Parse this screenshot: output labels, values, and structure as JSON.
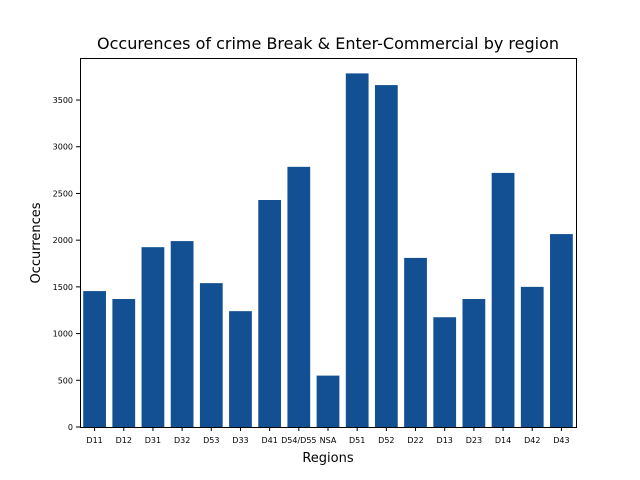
{
  "chart_data": {
    "type": "bar",
    "title": "Occurences of crime Break & Enter-Commercial by region",
    "xlabel": "Regions",
    "ylabel": "Occurrences",
    "categories": [
      "D11",
      "D12",
      "D31",
      "D32",
      "D53",
      "D33",
      "D41",
      "D54/D55",
      "NSA",
      "D51",
      "D52",
      "D22",
      "D13",
      "D23",
      "D14",
      "D42",
      "D43"
    ],
    "values": [
      1455,
      1370,
      1925,
      1990,
      1540,
      1240,
      2430,
      2785,
      550,
      3785,
      3660,
      1810,
      1175,
      1370,
      2720,
      1500,
      2065
    ],
    "ylim": [
      0,
      3950
    ],
    "yticks": [
      0,
      500,
      1000,
      1500,
      2000,
      2500,
      3000,
      3500
    ],
    "bar_color": "#134f93",
    "grid": false
  }
}
